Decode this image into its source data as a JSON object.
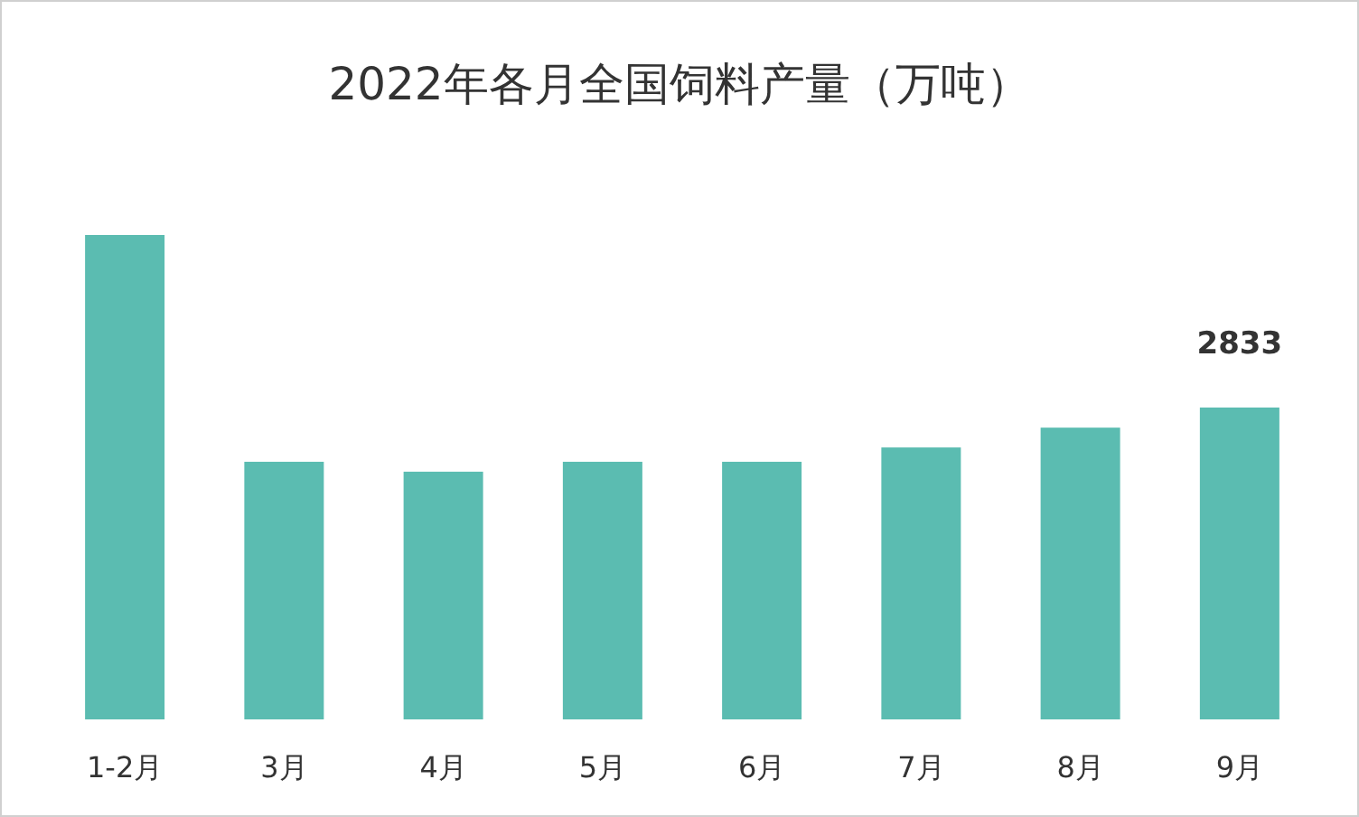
{
  "chart_data": {
    "type": "bar",
    "title": "2022年各月全国饲料产量（万吨）",
    "categories": [
      "1-2月",
      "3月",
      "4月",
      "5月",
      "6月",
      "7月",
      "8月",
      "9月"
    ],
    "values": [
      4400,
      2340,
      2250,
      2340,
      2340,
      2470,
      2650,
      2833
    ],
    "value_labels": [
      null,
      null,
      null,
      null,
      null,
      null,
      null,
      "2833"
    ],
    "color": "#5bbcb1"
  }
}
